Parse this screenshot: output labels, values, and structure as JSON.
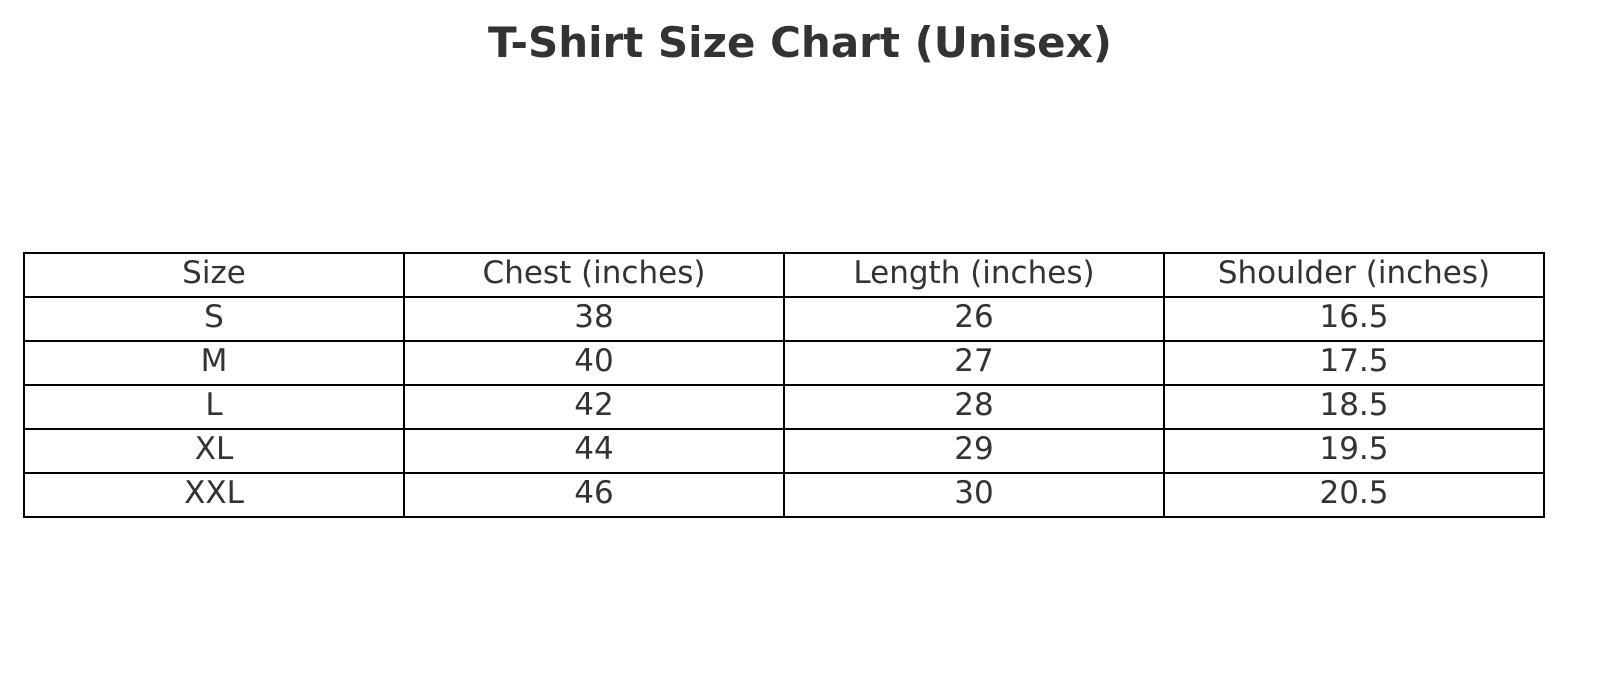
{
  "chart_data": {
    "type": "table",
    "title": "T-Shirt Size Chart (Unisex)",
    "columns": [
      "Size",
      "Chest (inches)",
      "Length (inches)",
      "Shoulder (inches)"
    ],
    "rows": [
      [
        "S",
        "38",
        "26",
        "16.5"
      ],
      [
        "M",
        "40",
        "27",
        "17.5"
      ],
      [
        "L",
        "42",
        "28",
        "18.5"
      ],
      [
        "XL",
        "44",
        "29",
        "19.5"
      ],
      [
        "XXL",
        "46",
        "30",
        "20.5"
      ]
    ]
  }
}
